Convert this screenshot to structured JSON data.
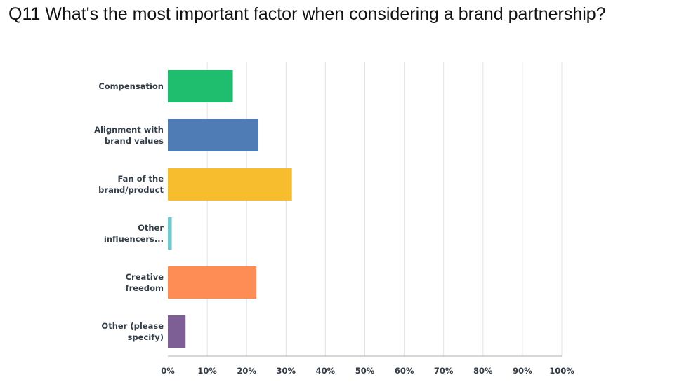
{
  "title": "Q11 What's the most important factor when considering a brand partnership?",
  "chart_data": {
    "type": "bar",
    "orientation": "horizontal",
    "title": "Q11 What's the most important factor when considering a brand partnership?",
    "categories": [
      [
        "Compensation"
      ],
      [
        "Alignment with",
        "brand values"
      ],
      [
        "Fan of the",
        "brand/product"
      ],
      [
        "Other",
        "influencers..."
      ],
      [
        "Creative",
        "freedom"
      ],
      [
        "Other (please",
        "specify)"
      ]
    ],
    "values": [
      16.5,
      23.0,
      31.5,
      1.0,
      22.5,
      4.5
    ],
    "colors": [
      "#1fbe6e",
      "#507cb6",
      "#f7bd2f",
      "#6fcad0",
      "#fd8c55",
      "#7d5f95"
    ],
    "xlim": [
      0,
      100
    ],
    "xticks": [
      0,
      10,
      20,
      30,
      40,
      50,
      60,
      70,
      80,
      90,
      100
    ],
    "xtick_labels": [
      "0%",
      "10%",
      "20%",
      "30%",
      "40%",
      "50%",
      "60%",
      "70%",
      "80%",
      "90%",
      "100%"
    ],
    "grid": true,
    "legend": "none"
  }
}
